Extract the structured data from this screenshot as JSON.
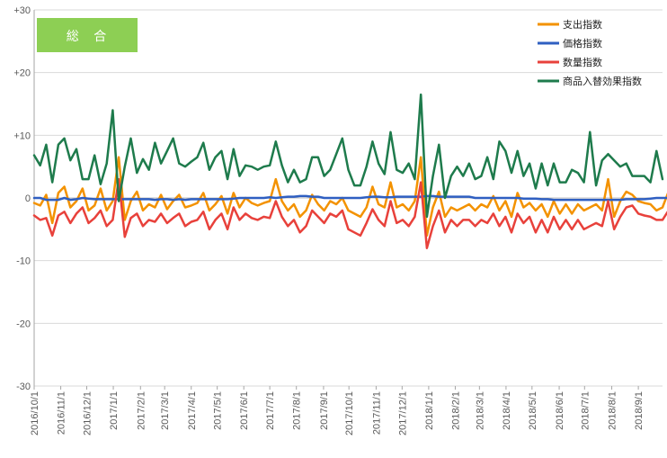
{
  "chart_data": {
    "type": "line",
    "title": "総 合",
    "xlabel": "",
    "ylabel": "",
    "ylim": [
      -30,
      30
    ],
    "yticks": [
      {
        "value": 30,
        "label": "+30"
      },
      {
        "value": 20,
        "label": "+20"
      },
      {
        "value": 10,
        "label": "+10"
      },
      {
        "value": 0,
        "label": "0"
      },
      {
        "value": -10,
        "label": "-10"
      },
      {
        "value": -20,
        "label": "-20"
      },
      {
        "value": -30,
        "label": "-30"
      }
    ],
    "xlim_week_index": [
      0,
      104
    ],
    "x_tick_labels": [
      {
        "label": "2016/10/1",
        "week": 0
      },
      {
        "label": "2016/11/1",
        "week": 4.4
      },
      {
        "label": "2016/12/1",
        "week": 8.7
      },
      {
        "label": "2017/1/1",
        "week": 13.1
      },
      {
        "label": "2017/2/1",
        "week": 17.6
      },
      {
        "label": "2017/3/1",
        "week": 21.6
      },
      {
        "label": "2017/4/1",
        "week": 26.0
      },
      {
        "label": "2017/5/1",
        "week": 30.3
      },
      {
        "label": "2017/6/1",
        "week": 34.7
      },
      {
        "label": "2017/7/1",
        "week": 39.0
      },
      {
        "label": "2017/8/1",
        "week": 43.4
      },
      {
        "label": "2017/9/1",
        "week": 47.9
      },
      {
        "label": "2017/10/1",
        "week": 52.1
      },
      {
        "label": "2017/11/1",
        "week": 56.6
      },
      {
        "label": "2017/12/1",
        "week": 60.9
      },
      {
        "label": "2018/1/1",
        "week": 65.3
      },
      {
        "label": "2018/2/1",
        "week": 69.7
      },
      {
        "label": "2018/3/1",
        "week": 73.7
      },
      {
        "label": "2018/4/1",
        "week": 78.1
      },
      {
        "label": "2018/5/1",
        "week": 82.4
      },
      {
        "label": "2018/6/1",
        "week": 86.9
      },
      {
        "label": "2018/7/1",
        "week": 91.1
      },
      {
        "label": "2018/8/1",
        "week": 95.6
      },
      {
        "label": "2018/9/1",
        "week": 100.0
      }
    ],
    "grid": true,
    "legend_position": "top-right",
    "colors": {
      "expenditure": "#F39200",
      "price": "#2F5FC1",
      "quantity": "#E8413B",
      "product_switch": "#1E7B4C",
      "badge": "#8DCF54",
      "grid": "#D9D9D9",
      "axis": "#A6A6A6"
    },
    "series": [
      {
        "key": "expenditure",
        "name": "支出指数",
        "values": [
          -0.8,
          -1.2,
          0.5,
          -4.0,
          0.8,
          1.8,
          -1.5,
          -0.5,
          1.5,
          -2.0,
          -1.2,
          1.5,
          -2.0,
          -0.5,
          6.5,
          -3.5,
          -0.5,
          1.0,
          -2.0,
          -1.0,
          -1.5,
          0.5,
          -1.8,
          -0.5,
          0.5,
          -1.5,
          -1.2,
          -0.8,
          0.8,
          -2.0,
          -1.0,
          0.3,
          -2.5,
          0.8,
          -1.5,
          0.0,
          -0.8,
          -1.2,
          -0.8,
          -0.5,
          3.0,
          -0.5,
          -2.0,
          -1.0,
          -3.0,
          -2.0,
          0.5,
          -1.0,
          -2.0,
          -0.5,
          -1.0,
          0.0,
          -2.0,
          -2.5,
          -3.0,
          -1.5,
          1.8,
          -1.0,
          -1.5,
          2.5,
          -1.5,
          -1.0,
          -2.0,
          -0.5,
          6.5,
          -6.0,
          -1.5,
          1.0,
          -3.0,
          -1.5,
          -2.0,
          -1.5,
          -1.0,
          -2.0,
          -1.0,
          -1.5,
          0.3,
          -2.0,
          -0.5,
          -3.0,
          0.8,
          -1.5,
          -0.8,
          -2.0,
          -1.0,
          -3.0,
          -0.5,
          -2.5,
          -1.0,
          -2.5,
          -1.0,
          -2.0,
          -1.5,
          -1.0,
          -2.0,
          3.0,
          -3.0,
          -0.5,
          1.0,
          0.5,
          -0.5,
          -0.8,
          -1.0,
          -2.0,
          -1.5,
          1.0,
          -2.0
        ]
      },
      {
        "key": "price",
        "name": "価格指数",
        "values": [
          0.0,
          0.0,
          -0.3,
          -0.3,
          -0.3,
          0.0,
          -0.3,
          -0.2,
          0.0,
          -0.1,
          -0.2,
          -0.2,
          -0.2,
          -0.2,
          -0.2,
          -0.2,
          -0.2,
          -0.2,
          -0.2,
          -0.2,
          -0.3,
          -0.2,
          -0.2,
          -0.3,
          -0.2,
          -0.3,
          -0.2,
          -0.2,
          -0.2,
          -0.2,
          -0.2,
          -0.2,
          -0.2,
          -0.1,
          0.0,
          0.0,
          0.0,
          0.0,
          0.0,
          0.1,
          0.0,
          0.1,
          0.2,
          0.2,
          0.3,
          0.3,
          0.2,
          0.2,
          0.0,
          0.0,
          0.0,
          0.0,
          0.0,
          0.0,
          0.0,
          0.1,
          0.2,
          0.2,
          0.1,
          0.1,
          0.2,
          0.2,
          0.2,
          0.2,
          0.2,
          0.3,
          0.3,
          0.2,
          0.2,
          0.2,
          0.2,
          0.2,
          0.2,
          0.0,
          0.0,
          0.0,
          0.0,
          0.0,
          0.0,
          0.0,
          0.0,
          -0.1,
          -0.1,
          -0.1,
          -0.2,
          -0.2,
          -0.3,
          -0.3,
          -0.3,
          -0.3,
          -0.3,
          -0.3,
          -0.3,
          -0.3,
          -0.3,
          -0.3,
          -0.3,
          -0.3,
          -0.2,
          -0.2,
          -0.2,
          -0.2,
          -0.1,
          0.0,
          0.0,
          0.0,
          0.0
        ]
      },
      {
        "key": "quantity",
        "name": "数量指数",
        "values": [
          -2.8,
          -3.5,
          -3.2,
          -6.0,
          -2.8,
          -2.2,
          -4.0,
          -2.5,
          -1.5,
          -4.0,
          -3.2,
          -2.0,
          -4.5,
          -3.5,
          3.0,
          -6.2,
          -3.2,
          -2.5,
          -4.5,
          -3.5,
          -3.8,
          -2.5,
          -4.0,
          -3.2,
          -2.5,
          -4.5,
          -3.8,
          -3.5,
          -2.2,
          -5.0,
          -3.5,
          -2.5,
          -5.0,
          -1.5,
          -3.5,
          -2.5,
          -3.2,
          -3.5,
          -3.0,
          -3.2,
          -0.5,
          -3.0,
          -4.5,
          -3.5,
          -5.5,
          -4.5,
          -2.0,
          -3.0,
          -4.0,
          -2.5,
          -3.0,
          -2.0,
          -5.0,
          -5.5,
          -6.0,
          -4.0,
          -1.8,
          -3.5,
          -4.5,
          -0.5,
          -4.0,
          -3.5,
          -4.5,
          -3.0,
          2.5,
          -8.0,
          -4.5,
          -2.0,
          -5.5,
          -3.5,
          -4.5,
          -3.5,
          -3.5,
          -4.5,
          -3.5,
          -4.0,
          -2.5,
          -4.5,
          -3.0,
          -5.5,
          -2.5,
          -4.0,
          -3.0,
          -5.5,
          -3.5,
          -5.5,
          -3.0,
          -5.0,
          -3.5,
          -5.0,
          -3.5,
          -5.0,
          -4.5,
          -4.0,
          -4.5,
          -0.5,
          -5.0,
          -3.0,
          -1.5,
          -1.2,
          -2.5,
          -2.8,
          -3.0,
          -3.5,
          -3.5,
          -2.0,
          -4.5
        ]
      },
      {
        "key": "product_switch",
        "name": "商品入替効果指数",
        "values": [
          6.8,
          5.2,
          8.5,
          2.5,
          8.5,
          9.5,
          6.0,
          7.8,
          3.0,
          3.0,
          6.8,
          2.2,
          5.5,
          14.0,
          -0.5,
          5.0,
          9.5,
          4.0,
          6.2,
          4.5,
          8.8,
          5.5,
          7.5,
          9.5,
          5.5,
          5.0,
          5.8,
          6.5,
          8.8,
          4.5,
          6.5,
          7.5,
          3.0,
          7.8,
          3.5,
          5.2,
          5.0,
          4.5,
          5.0,
          5.2,
          9.0,
          5.2,
          2.5,
          4.5,
          2.5,
          3.0,
          6.5,
          6.5,
          3.5,
          4.5,
          7.0,
          9.5,
          4.5,
          2.0,
          2.0,
          5.0,
          9.0,
          5.5,
          3.8,
          10.5,
          4.5,
          4.0,
          5.5,
          3.0,
          16.5,
          -3.0,
          3.5,
          8.5,
          0.0,
          3.5,
          5.0,
          3.5,
          5.5,
          3.0,
          3.5,
          6.5,
          3.0,
          9.0,
          7.5,
          4.0,
          7.5,
          3.5,
          5.5,
          1.5,
          5.5,
          2.0,
          5.5,
          2.5,
          2.5,
          4.5,
          4.0,
          2.5,
          10.5,
          2.0,
          6.0,
          7.0,
          6.0,
          5.0,
          5.5,
          3.5,
          3.5,
          3.5,
          2.5,
          7.5,
          3.0
        ]
      }
    ]
  }
}
